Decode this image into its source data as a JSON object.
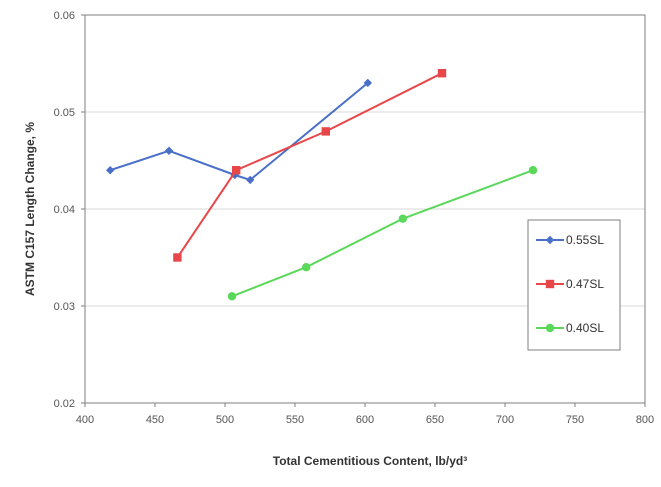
{
  "chart_data": {
    "type": "line",
    "xlabel": "Total Cementitious Content, lb/yd³",
    "ylabel": "ASTM C157 Length Change, %",
    "xlim": [
      400,
      800
    ],
    "ylim": [
      0.02,
      0.06
    ],
    "x_ticks": [
      "400",
      "450",
      "500",
      "550",
      "600",
      "650",
      "700",
      "750",
      "800"
    ],
    "y_ticks": [
      "0.02",
      "0.03",
      "0.04",
      "0.05",
      "0.06"
    ],
    "grid": "horizontal",
    "legend_position": "right",
    "series": [
      {
        "name": "0.55SL",
        "color": "#4a6fc9",
        "marker": "diamond",
        "points": [
          [
            418,
            0.044
          ],
          [
            460,
            0.046
          ],
          [
            507,
            0.0435
          ],
          [
            518,
            0.043
          ],
          [
            602,
            0.053
          ]
        ]
      },
      {
        "name": "0.47SL",
        "color": "#e8474a",
        "marker": "square",
        "points": [
          [
            466,
            0.035
          ],
          [
            508,
            0.044
          ],
          [
            572,
            0.048
          ],
          [
            655,
            0.054
          ]
        ]
      },
      {
        "name": "0.40SL",
        "color": "#5ad85a",
        "marker": "circle",
        "points": [
          [
            505,
            0.031
          ],
          [
            558,
            0.034
          ],
          [
            627,
            0.039
          ],
          [
            720,
            0.044
          ]
        ]
      }
    ]
  }
}
